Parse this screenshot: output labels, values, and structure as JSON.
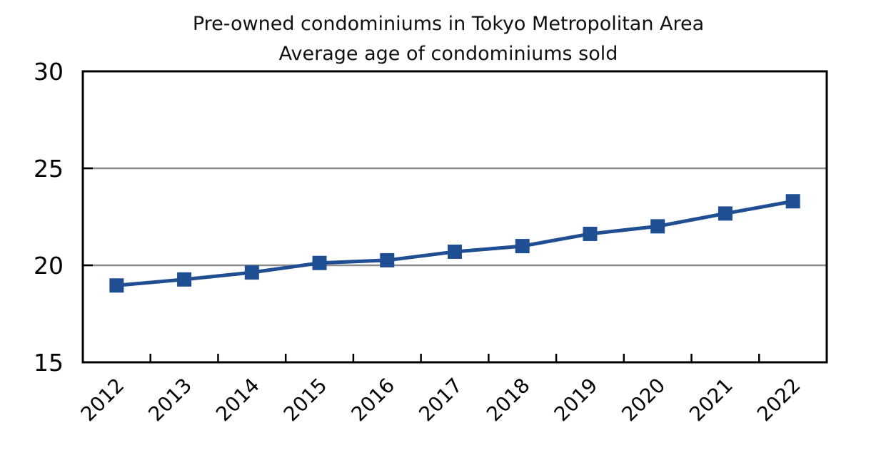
{
  "chart_data": {
    "type": "line",
    "title": "Pre-owned condominiums in Tokyo Metropolitan Area",
    "subtitle": "Average age of condominiums sold",
    "xlabel": "",
    "ylabel": "",
    "categories": [
      "2012",
      "2013",
      "2014",
      "2015",
      "2016",
      "2017",
      "2018",
      "2019",
      "2020",
      "2021",
      "2022"
    ],
    "series": [
      {
        "values": [
          18.96,
          19.27,
          19.63,
          20.12,
          20.26,
          20.7,
          20.99,
          21.62,
          22.01,
          22.67,
          23.3
        ],
        "color": "#1f4e93",
        "marker": "square"
      }
    ],
    "ylim": [
      15,
      30
    ],
    "yticks": [
      "15",
      "20",
      "25",
      "30"
    ],
    "gridlines": [
      20,
      25
    ],
    "grid": true,
    "legend": "none"
  }
}
